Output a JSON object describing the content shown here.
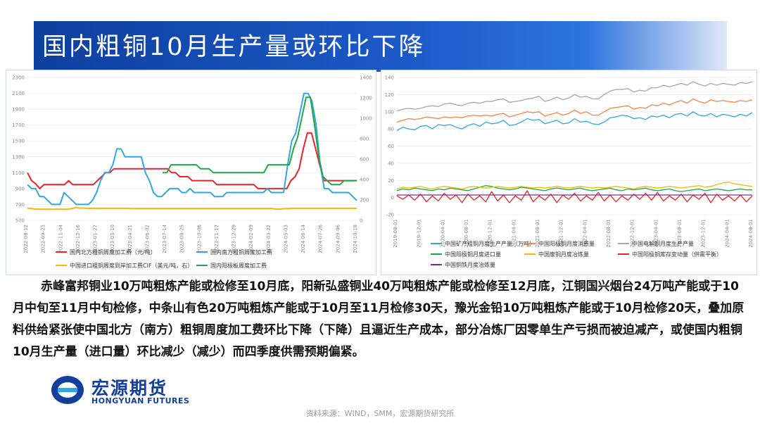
{
  "title": "国内粗铜10月生产量或环比下降",
  "body": "赤峰富邦铜业10万吨粗炼产能或检修至10月底，阳新弘盛铜业40万吨粗炼产能或检修至12月底，江铜国兴烟台24万吨产能或于10月中旬至11月中旬检修，中条山有色20万吨粗炼产能或于10月至11月检修30天，豫光金铅10万吨粗炼产能或于10月检修20天，叠加原料供给紧张使中国北方（南方）粗铜周度加工费环比下降（下降）且逼近生产成本，部分冶炼厂因零单生产亏损而被迫减产，或使国内粗铜10月生产量（进口量）环比减少（减少）而四季度供需预期偏紧。",
  "logo": {
    "cn": "宏源期货",
    "en": "HONGYUAN FUTURES"
  },
  "source": "资料来源：WIND，SMM，宏源期货研究所",
  "colors": {
    "red": "#e8242b",
    "blue": "#2fa8e0",
    "orange": "#f5b800",
    "green": "#1fa84a",
    "salmon": "#f4844a",
    "gray": "#a6a6a6",
    "purple": "#7a2d8f",
    "title_bg": "#174fb5"
  },
  "chart_data": [
    {
      "type": "line",
      "left_axis": {
        "ticks": [
          "500",
          "700",
          "900",
          "1100",
          "1300",
          "1500",
          "1700",
          "1900",
          "2100",
          "2300"
        ],
        "ylim": [
          500,
          2300
        ]
      },
      "right_axis": {
        "ticks": [
          "0",
          "200",
          "400",
          "600",
          "800",
          "1000",
          "1200",
          "1400"
        ],
        "ylim": [
          0,
          1400
        ]
      },
      "x_tick_labels": [
        "2022-08-12",
        "2022-09-23",
        "2022-11-04",
        "2022-12-16",
        "2023-01-27",
        "2023-03-10",
        "2023-04-21",
        "2023-06-02",
        "2023-07-14",
        "2023-08-25",
        "2023-10-06",
        "2023-11-17",
        "2023-12-29",
        "2024-02-09",
        "2024-03-22",
        "2024-05-03",
        "2024-06-14",
        "2024-07-26",
        "2024-09-06",
        "2024-10-18"
      ],
      "series": [
        {
          "name": "国内北方粗铜周度加工费（元/吨）",
          "color": "#e8242b",
          "axis": "left",
          "values": [
            1100,
            1000,
            960,
            900,
            950,
            950,
            950,
            950,
            950,
            950,
            1000,
            950,
            950,
            950,
            950,
            950,
            950,
            1000,
            1050,
            1100,
            1100,
            1150,
            1150,
            1150,
            1150,
            1150,
            1150,
            1150,
            1150,
            1150,
            1150,
            1150,
            1150,
            1150,
            1150,
            1100,
            1100,
            1050,
            1050,
            1050,
            1000,
            1000,
            1000,
            1000,
            1000,
            1000,
            950,
            950,
            950,
            950,
            950,
            950,
            950,
            950,
            950,
            950,
            900,
            900,
            900,
            900,
            900,
            900,
            900,
            900,
            1000,
            1050,
            1150,
            1400,
            1600,
            1600,
            1400,
            1200,
            1000,
            1000,
            1000,
            1000,
            1000,
            1000,
            1000,
            1000,
            1000
          ]
        },
        {
          "name": "国内南方粗铜周度加工费",
          "color": "#2fa8e0",
          "axis": "left",
          "values": [
            950,
            900,
            900,
            800,
            800,
            750,
            700,
            700,
            700,
            850,
            800,
            750,
            700,
            700,
            700,
            700,
            750,
            850,
            1000,
            1100,
            1100,
            1200,
            1400,
            1400,
            1300,
            1300,
            1300,
            1300,
            1300,
            1100,
            1000,
            850,
            800,
            800,
            850,
            900,
            900,
            900,
            850,
            850,
            900,
            850,
            850,
            850,
            850,
            850,
            800,
            800,
            800,
            850,
            850,
            850,
            850,
            850,
            850,
            850,
            850,
            850,
            850,
            900,
            850,
            850,
            850,
            850,
            1200,
            1500,
            1600,
            1850,
            2100,
            2100,
            2000,
            1700,
            1200,
            900,
            900,
            850,
            850,
            850,
            850,
            850,
            800,
            750
          ]
        },
        {
          "name": "中国进口粗铜周度到岸加工费CIF（美元/吨，右）",
          "color": "#f5b800",
          "axis": "right",
          "values": [
            120,
            115,
            110,
            110,
            108,
            108,
            108,
            108,
            108,
            108,
            108,
            115,
            125,
            120,
            120,
            118,
            118,
            118,
            118,
            118,
            118,
            118,
            118,
            118,
            118,
            118,
            115,
            115,
            115,
            115,
            115,
            115,
            115,
            115,
            115,
            115,
            115,
            115,
            115,
            115,
            115,
            115,
            115,
            115,
            115,
            115,
            115,
            115,
            115,
            115,
            115,
            115,
            115,
            115,
            115,
            115,
            115,
            115,
            115,
            115,
            115,
            115,
            110,
            110,
            115,
            115,
            118,
            118,
            118,
            118,
            118,
            118,
            118,
            118,
            118,
            118,
            118,
            118,
            118,
            118,
            118,
            118,
            118
          ]
        },
        {
          "name": "国内阳极板周度加工费",
          "color": "#1fa84a",
          "axis": "left",
          "values": [
            null,
            null,
            null,
            null,
            null,
            null,
            null,
            null,
            null,
            null,
            null,
            null,
            null,
            null,
            null,
            null,
            null,
            null,
            null,
            null,
            null,
            null,
            null,
            null,
            null,
            null,
            null,
            null,
            null,
            null,
            null,
            null,
            1100,
            1100,
            1200,
            1200,
            1200,
            1200,
            1200,
            1200,
            1200,
            1150,
            1150,
            1150,
            1100,
            1100,
            1100,
            1100,
            1100,
            1100,
            1100,
            1100,
            1100,
            1100,
            1100,
            1100,
            1100,
            1200,
            1200,
            1200,
            1200,
            1200,
            1200,
            1400,
            1550,
            1800,
            2050,
            2050,
            1700,
            1300,
            1050,
            1000,
            950,
            950,
            950,
            1000,
            1000,
            1000,
            1000
          ]
        }
      ]
    },
    {
      "type": "line",
      "left_axis": {
        "ticks": [
          "-20",
          "0",
          "20",
          "40",
          "60",
          "80",
          "100",
          "120",
          "140"
        ],
        "ylim": [
          -20,
          140
        ]
      },
      "x_tick_labels": [
        "2019-08-01",
        "2019-12-01",
        "2020-04-01",
        "2020-08-01",
        "2020-12-01",
        "2021-04-01",
        "2021-08-01",
        "2021-12-01",
        "2022-04-01",
        "2022-08-01",
        "2022-12-01",
        "2023-04-01",
        "2023-08-01",
        "2023-12-01",
        "2024-04-01",
        "2024-08-01"
      ],
      "series": [
        {
          "name": "中国矿产粗铜月度生产产量（万吨）",
          "color": "#2fa8e0",
          "values": [
            78,
            82,
            80,
            79,
            83,
            84,
            80,
            85,
            84,
            85,
            82,
            80,
            84,
            86,
            83,
            88,
            86,
            87,
            90,
            84,
            85,
            88,
            92,
            90,
            91,
            86,
            88,
            90,
            86,
            87,
            92,
            88,
            89,
            86,
            85,
            88,
            93,
            94,
            96,
            95,
            92,
            93,
            91,
            95,
            94,
            96,
            93,
            97,
            98,
            95,
            100,
            96,
            95,
            98,
            94,
            97,
            96,
            94,
            97,
            95,
            99
          ]
        },
        {
          "name": "中国阳极铜月度消费量",
          "color": "#f4844a",
          "values": [
            88,
            90,
            92,
            91,
            92,
            94,
            93,
            92,
            94,
            93,
            94,
            93,
            95,
            96,
            95,
            96,
            95,
            97,
            98,
            94,
            96,
            98,
            100,
            99,
            100,
            95,
            97,
            99,
            96,
            98,
            102,
            98,
            100,
            96,
            96,
            100,
            104,
            105,
            106,
            107,
            103,
            105,
            104,
            108,
            107,
            110,
            108,
            111,
            113,
            110,
            115,
            112,
            110,
            114,
            112,
            113,
            112,
            111,
            113,
            112,
            114
          ]
        },
        {
          "name": "中国电解铜月度生产产量",
          "color": "#a6a6a6",
          "values": [
            101,
            103,
            104,
            103,
            104,
            106,
            107,
            106,
            109,
            110,
            108,
            107,
            110,
            111,
            110,
            112,
            112,
            114,
            115,
            111,
            112,
            113,
            115,
            116,
            118,
            112,
            114,
            117,
            114,
            116,
            120,
            117,
            118,
            115,
            115,
            120,
            124,
            126,
            126,
            127,
            123,
            125,
            124,
            128,
            128,
            131,
            129,
            131,
            133,
            131,
            135,
            132,
            130,
            133,
            131,
            133,
            132,
            131,
            134,
            133,
            135
          ]
        },
        {
          "name": "中国阳极铜月度进口量",
          "color": "#1fa84a",
          "values": [
            8,
            10,
            9,
            11,
            10,
            9,
            8,
            10,
            9,
            11,
            10,
            9,
            8,
            10,
            12,
            14,
            13,
            11,
            10,
            9,
            10,
            12,
            11,
            10,
            9,
            8,
            10,
            11,
            10,
            9,
            10,
            11,
            9,
            8,
            9,
            10,
            11,
            9,
            8,
            10,
            9,
            10,
            11,
            9,
            8,
            9,
            10,
            8,
            7,
            8,
            9,
            10,
            8,
            9,
            10,
            9,
            8,
            9,
            10,
            9,
            9
          ]
        },
        {
          "name": "中国废铜月度冶炼量",
          "color": "#f5b800",
          "values": [
            10,
            12,
            11,
            12,
            13,
            11,
            10,
            12,
            13,
            12,
            11,
            10,
            12,
            13,
            12,
            11,
            12,
            13,
            12,
            11,
            12,
            13,
            12,
            11,
            12,
            11,
            12,
            13,
            12,
            11,
            12,
            13,
            12,
            11,
            12,
            11,
            12,
            13,
            12,
            11,
            10,
            12,
            13,
            12,
            11,
            12,
            13,
            12,
            11,
            12,
            13,
            14,
            12,
            13,
            15,
            17,
            18,
            16,
            15,
            14,
            13
          ]
        },
        {
          "name": "中国阳极铜库存变动量（供需平衡）",
          "color": "#e8242b",
          "values": [
            2,
            -2,
            3,
            -3,
            4,
            -5,
            2,
            -4,
            5,
            -2,
            3,
            -6,
            4,
            -3,
            2,
            -5,
            7,
            -4,
            3,
            -6,
            2,
            -3,
            8,
            -5,
            2,
            -3,
            4,
            -6,
            3,
            -2,
            5,
            -4,
            2,
            -3,
            6,
            -4,
            3,
            -5,
            2,
            -3,
            4,
            -2,
            5,
            -3,
            6,
            -4,
            2,
            -3,
            4,
            -5,
            3,
            -2,
            5,
            -6,
            4,
            -3,
            2,
            -4,
            3,
            -5,
            2
          ]
        },
        {
          "name": "中国铜铁月度冶炼量",
          "color": "#7a2d8f",
          "values": [
            3,
            3,
            3,
            3,
            3,
            3,
            3,
            3,
            3,
            3,
            3,
            3,
            3,
            3,
            3,
            3,
            3,
            3,
            3,
            3,
            3,
            3,
            3,
            3,
            3,
            3,
            3,
            3,
            3,
            3,
            3,
            3,
            3,
            3,
            3,
            3,
            3,
            3,
            3,
            3,
            3,
            3,
            3,
            3,
            3,
            3,
            3,
            3,
            3,
            3,
            3,
            3,
            3,
            3,
            3,
            3,
            3,
            3,
            3,
            3,
            3
          ]
        }
      ]
    }
  ]
}
